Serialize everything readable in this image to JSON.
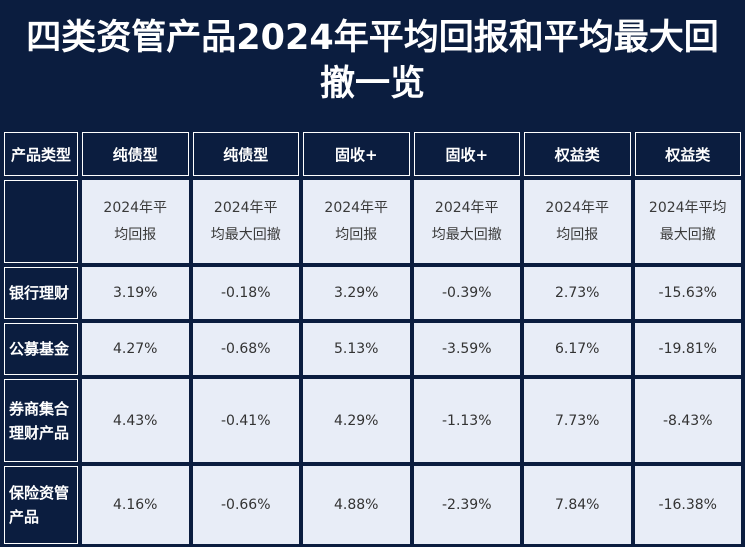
{
  "title": {
    "line1": "四类资管产品2024年平均回报和平均最大回",
    "line2": "撤一览"
  },
  "table": {
    "corner_label": "产品类型",
    "headers": [
      "纯债型",
      "纯债型",
      "固收+",
      "固收+",
      "权益类",
      "权益类"
    ],
    "subheaders": [
      [
        "2024年平",
        "均回报"
      ],
      [
        "2024年平",
        "均最大回撤"
      ],
      [
        "2024年平",
        "均回报"
      ],
      [
        "2024年平",
        "均最大回撤"
      ],
      [
        "2024年平",
        "均回报"
      ],
      [
        "2024年平均",
        "最大回撤"
      ]
    ],
    "rows": [
      {
        "label_lines": [
          "银行理财"
        ],
        "values": [
          "3.19%",
          "-0.18%",
          "3.29%",
          "-0.39%",
          "2.73%",
          "-15.63%"
        ]
      },
      {
        "label_lines": [
          "公募基金"
        ],
        "values": [
          "4.27%",
          "-0.68%",
          "5.13%",
          "-3.59%",
          "6.17%",
          "-19.81%"
        ]
      },
      {
        "label_lines": [
          "券商集合",
          "理财产品"
        ],
        "values": [
          "4.43%",
          "-0.41%",
          "4.29%",
          "-1.13%",
          "7.73%",
          "-8.43%"
        ]
      },
      {
        "label_lines": [
          "保险资管",
          "产品"
        ],
        "values": [
          "4.16%",
          "-0.66%",
          "4.88%",
          "-2.39%",
          "7.84%",
          "-16.38%"
        ]
      }
    ]
  },
  "colors": {
    "navy": "#0b1d3f",
    "cell_bg": "#e8edf7",
    "text_light": "#ffffff",
    "text_dark": "#333333"
  }
}
